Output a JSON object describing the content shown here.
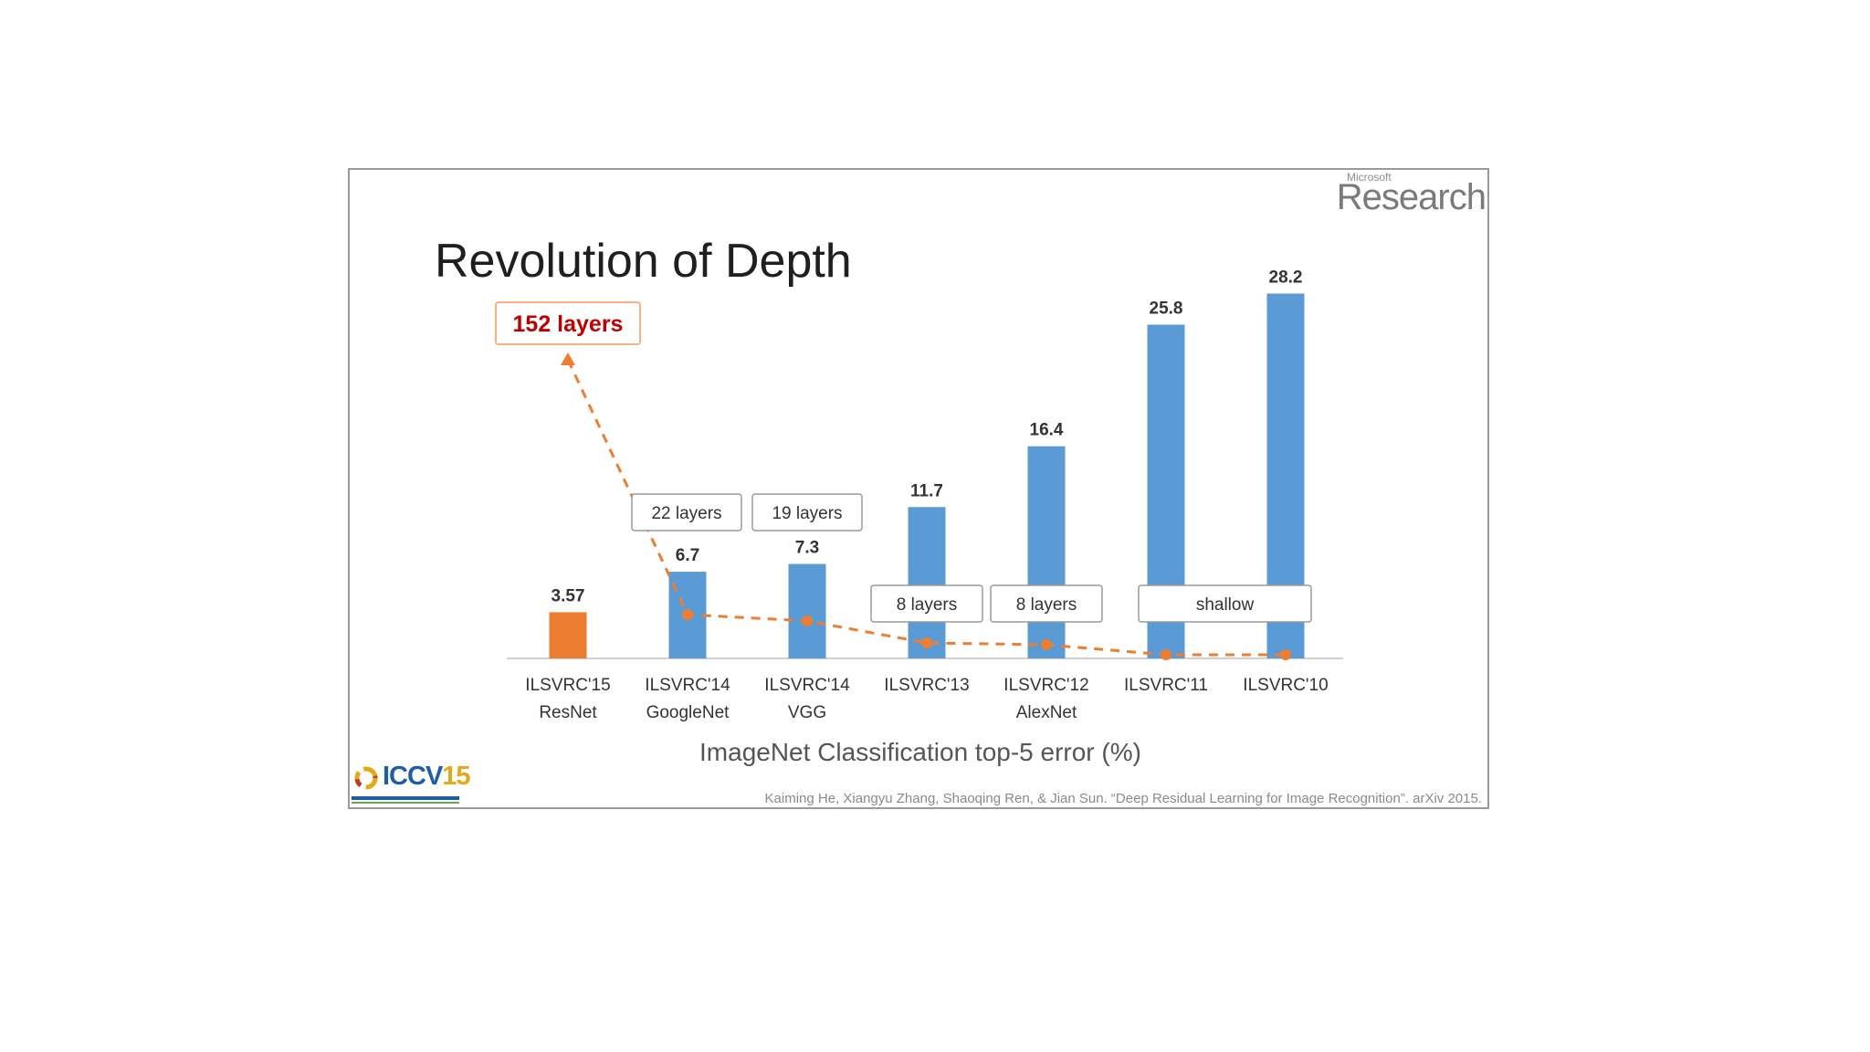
{
  "slide": {
    "brand_small": "Microsoft",
    "brand_big": "Research",
    "title": "Revolution of Depth",
    "axis_title": "ImageNet Classification top-5 error (%)",
    "logo_text_main": "ICCV",
    "logo_text_year": "15",
    "citation": "Kaiming He, Xiangyu Zhang, Shaoqing Ren, & Jian Sun. “Deep Residual Learning for Image Recognition”. arXiv 2015."
  },
  "colors": {
    "bar": "#5b9bd5",
    "highlight": "#ed7d31",
    "callout": "#c00000",
    "text": "#333333"
  },
  "chart_data": {
    "type": "bar",
    "title": "Revolution of Depth",
    "xlabel": "ImageNet Classification top-5 error (%)",
    "ylabel": "",
    "ylim": [
      0,
      30
    ],
    "categories": [
      [
        "ILSVRC'15",
        "ResNet"
      ],
      [
        "ILSVRC'14",
        "GoogleNet"
      ],
      [
        "ILSVRC'14",
        "VGG"
      ],
      [
        "ILSVRC'13",
        ""
      ],
      [
        "ILSVRC'12",
        "AlexNet"
      ],
      [
        "ILSVRC'11",
        ""
      ],
      [
        "ILSVRC'10",
        ""
      ]
    ],
    "values": [
      3.57,
      6.7,
      7.3,
      11.7,
      16.4,
      25.8,
      28.2
    ],
    "value_labels": [
      "3.57",
      "6.7",
      "7.3",
      "11.7",
      "16.4",
      "25.8",
      "28.2"
    ],
    "highlight_index": 0,
    "depth_labels": [
      {
        "text": "152 layers",
        "indices": [
          0
        ],
        "emphasis": true
      },
      {
        "text": "22 layers",
        "indices": [
          1
        ]
      },
      {
        "text": "19 layers",
        "indices": [
          2
        ]
      },
      {
        "text": "8 layers",
        "indices": [
          3
        ]
      },
      {
        "text": "8 layers",
        "indices": [
          4
        ]
      },
      {
        "text": "shallow",
        "indices": [
          5,
          6
        ]
      }
    ],
    "depth_trend_line": "dashed"
  }
}
